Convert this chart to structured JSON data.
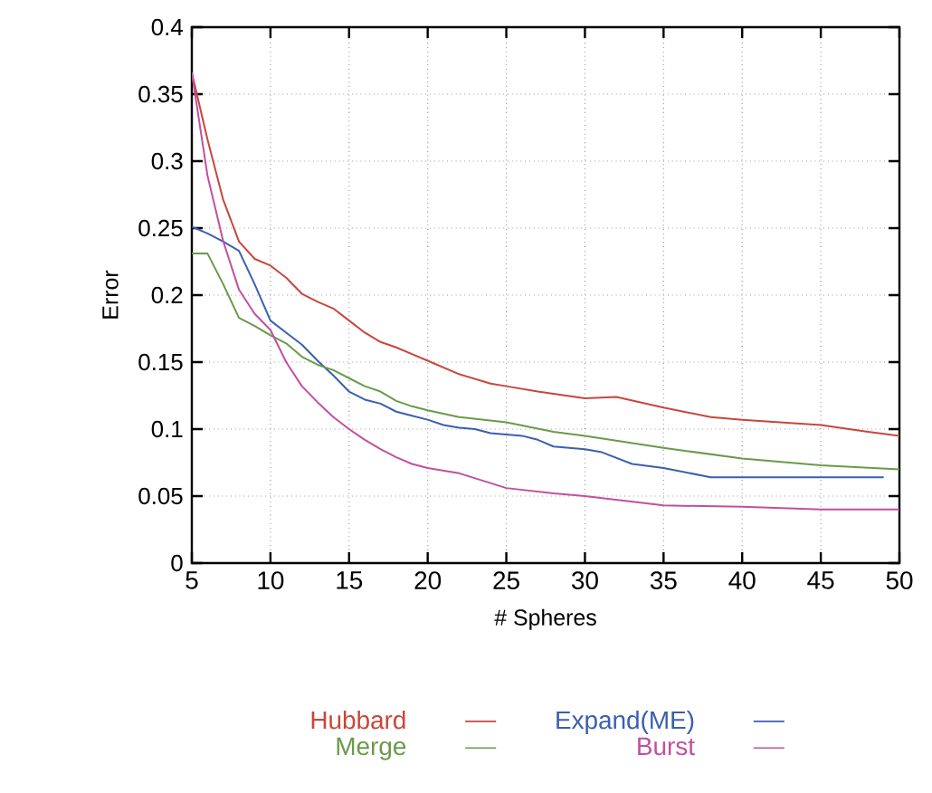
{
  "chart_data": {
    "type": "line",
    "xlabel": "# Spheres",
    "ylabel": "Error",
    "xlim": [
      5,
      50
    ],
    "ylim": [
      0,
      0.4
    ],
    "xticks": [
      5,
      10,
      15,
      20,
      25,
      30,
      35,
      40,
      45,
      50
    ],
    "yticks": [
      0,
      0.05,
      0.1,
      0.15,
      0.2,
      0.25,
      0.3,
      0.35,
      0.4
    ],
    "grid": true,
    "legend": "bottom",
    "marker": "none",
    "line_style": "solid",
    "series": [
      {
        "name": "Hubbard",
        "color": "#c8463c",
        "x": [
          5,
          6,
          7,
          8,
          9,
          10,
          11,
          12,
          13,
          14,
          15,
          16,
          17,
          18,
          19,
          20,
          22,
          24,
          25,
          27,
          30,
          32,
          35,
          38,
          40,
          45,
          48,
          50
        ],
        "values": [
          0.366,
          0.316,
          0.271,
          0.24,
          0.227,
          0.222,
          0.213,
          0.201,
          0.195,
          0.19,
          0.181,
          0.172,
          0.165,
          0.161,
          0.156,
          0.151,
          0.141,
          0.134,
          0.132,
          0.128,
          0.123,
          0.124,
          0.116,
          0.109,
          0.107,
          0.103,
          0.098,
          0.095
        ]
      },
      {
        "name": "Expand(ME)",
        "color": "#3a5fb0",
        "x": [
          5,
          6,
          7,
          8,
          9,
          10,
          11,
          12,
          13,
          14,
          15,
          16,
          17,
          18,
          19,
          20,
          21,
          22,
          23,
          24,
          25,
          26,
          27,
          28,
          30,
          31,
          33,
          35,
          38,
          40,
          45,
          49
        ],
        "values": [
          0.251,
          0.246,
          0.24,
          0.233,
          0.208,
          0.181,
          0.172,
          0.163,
          0.151,
          0.14,
          0.128,
          0.122,
          0.119,
          0.113,
          0.11,
          0.107,
          0.103,
          0.101,
          0.1,
          0.097,
          0.096,
          0.095,
          0.092,
          0.087,
          0.085,
          0.083,
          0.074,
          0.071,
          0.064,
          0.064,
          0.064,
          0.064
        ]
      },
      {
        "name": "Merge",
        "color": "#6a9a4a",
        "x": [
          5,
          6,
          7,
          8,
          9,
          10,
          11,
          12,
          13,
          14,
          15,
          16,
          17,
          18,
          19,
          20,
          22,
          25,
          28,
          30,
          35,
          40,
          45,
          50
        ],
        "values": [
          0.231,
          0.231,
          0.208,
          0.183,
          0.177,
          0.17,
          0.164,
          0.154,
          0.148,
          0.144,
          0.138,
          0.132,
          0.128,
          0.121,
          0.117,
          0.114,
          0.109,
          0.105,
          0.098,
          0.095,
          0.086,
          0.078,
          0.073,
          0.07
        ]
      },
      {
        "name": "Burst",
        "color": "#c050a0",
        "x": [
          5,
          6,
          7,
          8,
          9,
          10,
          11,
          12,
          13,
          14,
          15,
          16,
          17,
          18,
          19,
          20,
          22,
          25,
          28,
          30,
          35,
          40,
          45,
          50
        ],
        "values": [
          0.366,
          0.289,
          0.24,
          0.204,
          0.186,
          0.174,
          0.15,
          0.132,
          0.12,
          0.109,
          0.1,
          0.092,
          0.085,
          0.079,
          0.074,
          0.071,
          0.067,
          0.056,
          0.052,
          0.05,
          0.043,
          0.042,
          0.04,
          0.04
        ]
      }
    ]
  }
}
